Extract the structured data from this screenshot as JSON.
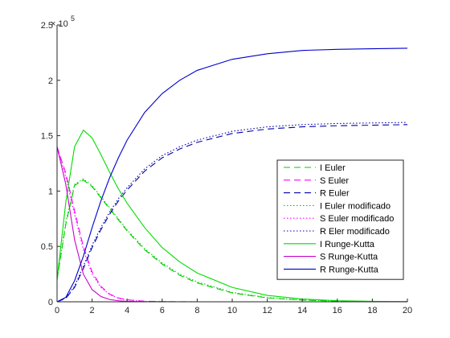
{
  "chart_data": {
    "type": "line",
    "title": "",
    "xlabel": "",
    "ylabel": "",
    "xlim": [
      0,
      20
    ],
    "ylim": [
      0,
      250000
    ],
    "x_ticks": [
      0,
      2,
      4,
      6,
      8,
      10,
      12,
      14,
      16,
      18,
      20
    ],
    "y_ticks": [
      0,
      0.5,
      1,
      1.5,
      2,
      2.5
    ],
    "y_multiplier_base": "× 10",
    "y_multiplier_exponent": "5",
    "grid": false,
    "legend_position": "right, middle",
    "x": [
      0,
      0.5,
      1,
      1.5,
      2,
      2.5,
      3,
      3.5,
      4,
      5,
      6,
      7,
      8,
      10,
      12,
      14,
      16,
      18,
      20
    ],
    "series": [
      {
        "name": "I Euler",
        "color": "#00cc00",
        "style": "dashed",
        "values": [
          20000,
          70000,
          105000,
          110000,
          104000,
          94000,
          84000,
          74000,
          64000,
          47000,
          34000,
          24000,
          17000,
          8000,
          3500,
          1500,
          600,
          250,
          100
        ]
      },
      {
        "name": "S Euler",
        "color": "#ff00ff",
        "style": "dashed",
        "values": [
          140000,
          116000,
          82000,
          50000,
          27000,
          14000,
          7000,
          3500,
          1800,
          500,
          150,
          40,
          10,
          0,
          0,
          0,
          0,
          0,
          0
        ]
      },
      {
        "name": "R Euler",
        "color": "#0000aa",
        "style": "dashed",
        "values": [
          0,
          3000,
          13000,
          30000,
          49000,
          65000,
          79000,
          91000,
          101000,
          118000,
          130000,
          138000,
          144000,
          152000,
          156000,
          158000,
          159000,
          159500,
          160000
        ]
      },
      {
        "name": "I Euler modificado",
        "color": "#00cc00",
        "style": "dotted",
        "values": [
          20000,
          72000,
          106000,
          111000,
          105000,
          95000,
          85000,
          75000,
          65000,
          48000,
          35000,
          25000,
          18000,
          8500,
          3800,
          1600,
          650,
          260,
          110
        ]
      },
      {
        "name": "S Euler modificado",
        "color": "#ff00ff",
        "style": "dotted",
        "values": [
          140000,
          113000,
          79000,
          47000,
          25000,
          13000,
          6500,
          3200,
          1600,
          400,
          120,
          30,
          8,
          0,
          0,
          0,
          0,
          0,
          0
        ]
      },
      {
        "name": "R Eler modificado",
        "color": "#0000aa",
        "style": "dotted",
        "values": [
          0,
          3500,
          14000,
          32000,
          51000,
          67000,
          81000,
          93000,
          103000,
          120000,
          132000,
          140000,
          146000,
          154000,
          158000,
          160000,
          161000,
          161500,
          162000
        ]
      },
      {
        "name": "I Runge-Kutta",
        "color": "#00dd00",
        "style": "solid",
        "values": [
          20000,
          90000,
          140000,
          155000,
          148000,
          133000,
          117000,
          102000,
          89000,
          67000,
          49000,
          36000,
          26000,
          13000,
          5800,
          2500,
          1000,
          400,
          150
        ]
      },
      {
        "name": "S Runge-Kutta",
        "color": "#cc00cc",
        "style": "solid",
        "values": [
          140000,
          106000,
          56000,
          25000,
          11000,
          4800,
          2100,
          900,
          400,
          80,
          15,
          3,
          0,
          0,
          0,
          0,
          0,
          0,
          0
        ]
      },
      {
        "name": "R Runge-Kutta",
        "color": "#0000cc",
        "style": "solid",
        "values": [
          0,
          4000,
          19000,
          41000,
          67000,
          91000,
          112000,
          130000,
          146000,
          171000,
          188000,
          200000,
          209000,
          219000,
          224000,
          227000,
          228000,
          228500,
          229000
        ]
      }
    ]
  }
}
